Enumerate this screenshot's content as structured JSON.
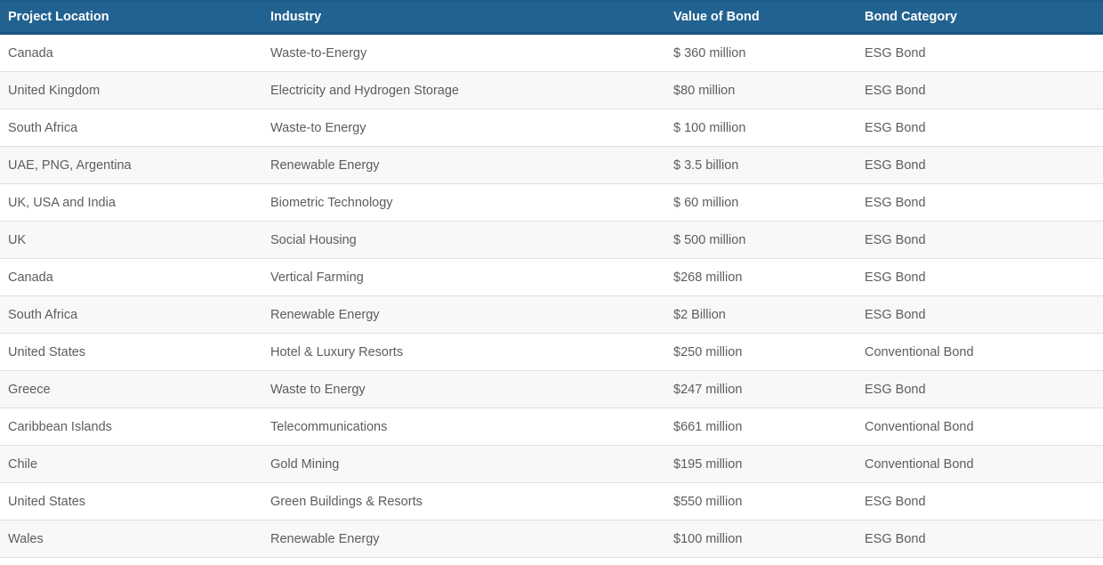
{
  "table": {
    "columns": [
      {
        "key": "location",
        "label": "Project Location"
      },
      {
        "key": "industry",
        "label": "Industry"
      },
      {
        "key": "value",
        "label": "Value of Bond"
      },
      {
        "key": "category",
        "label": "Bond Category"
      }
    ],
    "rows": [
      {
        "location": "Canada",
        "industry": "Waste-to-Energy",
        "value": "$ 360 million",
        "category": "ESG Bond"
      },
      {
        "location": "United Kingdom",
        "industry": "Electricity and Hydrogen Storage",
        "value": "$80 million",
        "category": "ESG Bond"
      },
      {
        "location": "South Africa",
        "industry": "Waste-to Energy",
        "value": "$ 100 million",
        "category": "ESG Bond"
      },
      {
        "location": "UAE, PNG, Argentina",
        "industry": "Renewable Energy",
        "value": "$ 3.5 billion",
        "category": "ESG Bond"
      },
      {
        "location": "UK, USA and India",
        "industry": "Biometric Technology",
        "value": "$ 60 million",
        "category": "ESG Bond"
      },
      {
        "location": "UK",
        "industry": "Social Housing",
        "value": "$ 500 million",
        "category": "ESG Bond"
      },
      {
        "location": "Canada",
        "industry": "Vertical Farming",
        "value": "$268 million",
        "category": "ESG Bond"
      },
      {
        "location": "South Africa",
        "industry": "Renewable Energy",
        "value": "$2 Billion",
        "category": "ESG Bond"
      },
      {
        "location": "United States",
        "industry": "Hotel & Luxury Resorts",
        "value": "$250 million",
        "category": "Conventional Bond"
      },
      {
        "location": "Greece",
        "industry": "Waste to Energy",
        "value": "$247 million",
        "category": "ESG Bond"
      },
      {
        "location": "Caribbean Islands",
        "industry": "Telecommunications",
        "value": "$661 million",
        "category": "Conventional Bond"
      },
      {
        "location": "Chile",
        "industry": "Gold Mining",
        "value": "$195 million",
        "category": "Conventional Bond"
      },
      {
        "location": "United States",
        "industry": "Green Buildings & Resorts",
        "value": "$550 million",
        "category": "ESG Bond"
      },
      {
        "location": "Wales",
        "industry": "Renewable Energy",
        "value": "$100 million",
        "category": "ESG Bond"
      }
    ]
  },
  "colors": {
    "header_bg": "#226290",
    "header_border_top": "#1e5c88",
    "header_border_bottom": "#19557f",
    "header_text": "#ffffff",
    "body_text": "#5a5d60",
    "row_alt_bg": "#f8f8f8",
    "divider": "#e0e0e0"
  }
}
